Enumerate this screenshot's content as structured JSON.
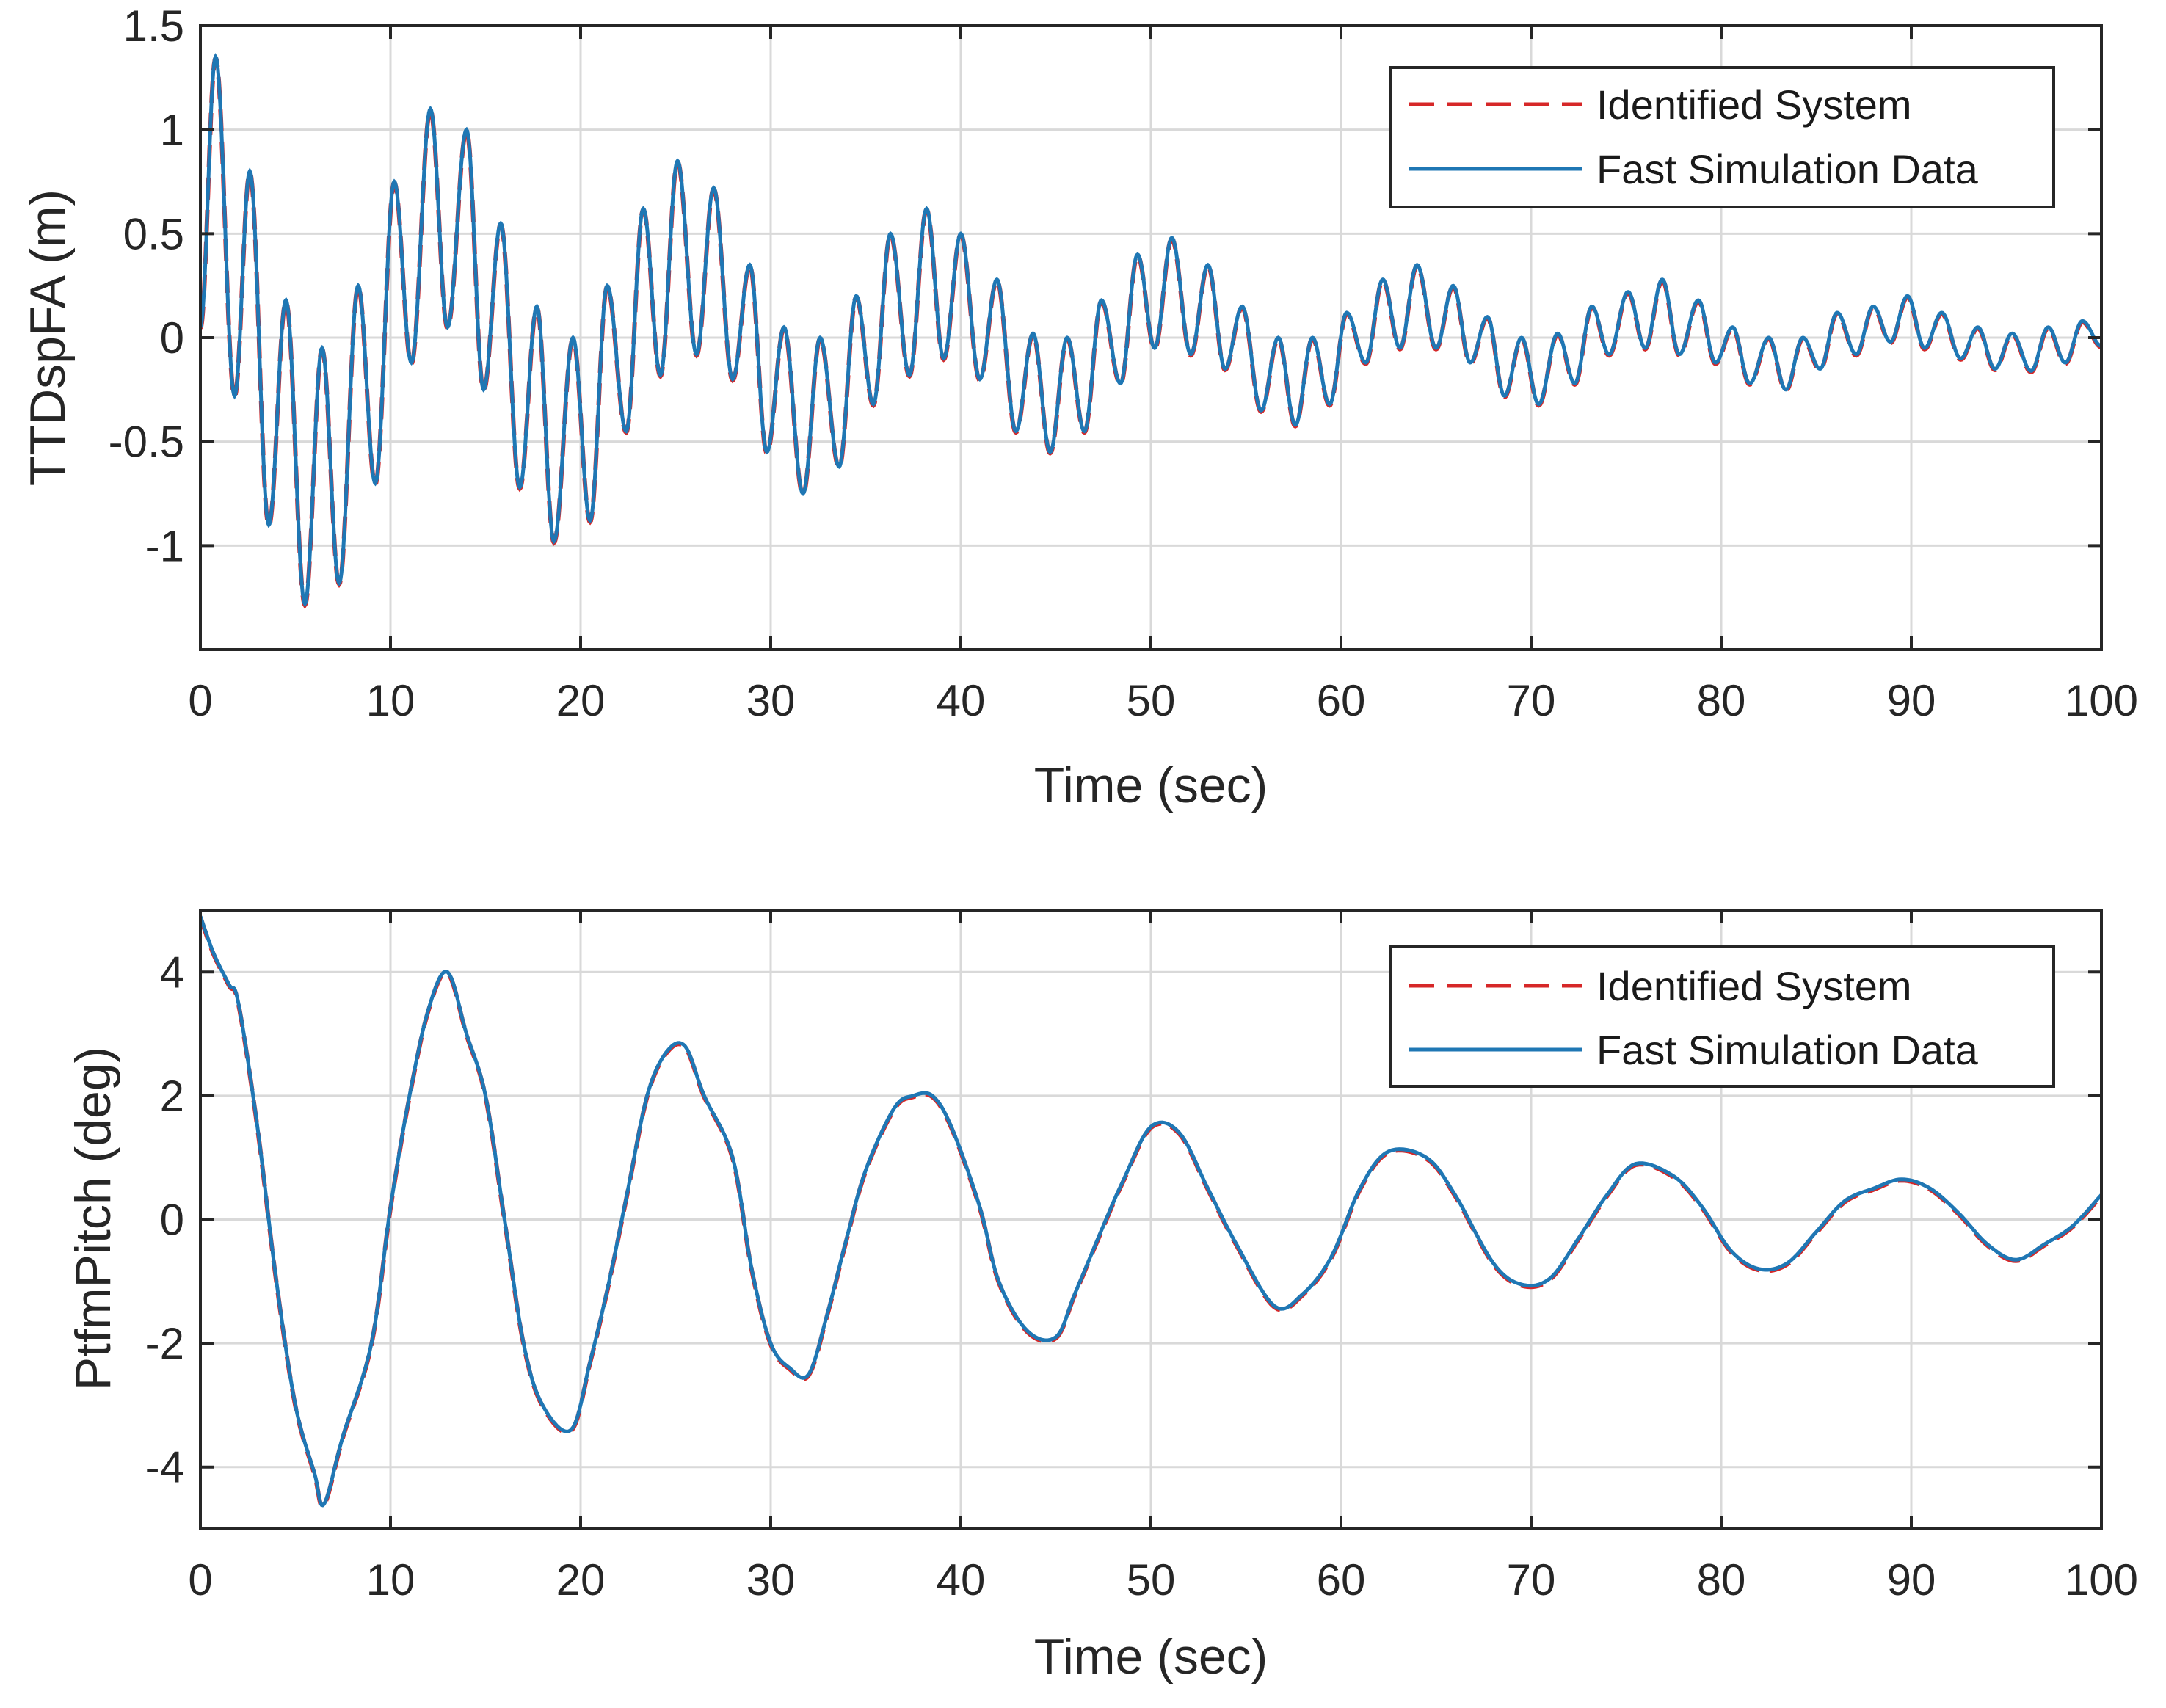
{
  "chart_data": [
    {
      "type": "line",
      "xlabel": "Time (sec)",
      "ylabel": "TTDspFA (m)",
      "xlim": [
        0,
        100
      ],
      "ylim": [
        -1.5,
        1.5
      ],
      "xticks": [
        "0",
        "10",
        "20",
        "30",
        "40",
        "50",
        "60",
        "70",
        "80",
        "90",
        "100"
      ],
      "yticks": [
        "1.5",
        "1",
        "0.5",
        "0",
        "-0.5",
        "-1"
      ],
      "grid": true,
      "legend_location": "top-right",
      "colors": {
        "identified": "#d62728",
        "fast": "#1f77b4"
      },
      "series": [
        {
          "name": "Identified System",
          "style": "dashed"
        },
        {
          "name": "Fast Simulation Data",
          "style": "solid"
        }
      ],
      "peaks": [
        [
          0,
          0.05
        ],
        [
          0.8,
          1.35
        ],
        [
          1.8,
          -0.28
        ],
        [
          2.6,
          0.8
        ],
        [
          3.6,
          -0.9
        ],
        [
          4.5,
          0.18
        ],
        [
          5.5,
          -1.28
        ],
        [
          6.4,
          -0.05
        ],
        [
          7.3,
          -1.18
        ],
        [
          8.3,
          0.25
        ],
        [
          9.2,
          -0.7
        ],
        [
          10.2,
          0.75
        ],
        [
          11.1,
          -0.12
        ],
        [
          12.1,
          1.1
        ],
        [
          13.0,
          0.05
        ],
        [
          14.0,
          1.0
        ],
        [
          14.9,
          -0.25
        ],
        [
          15.8,
          0.55
        ],
        [
          16.8,
          -0.72
        ],
        [
          17.7,
          0.15
        ],
        [
          18.6,
          -0.98
        ],
        [
          19.6,
          0.0
        ],
        [
          20.5,
          -0.88
        ],
        [
          21.4,
          0.25
        ],
        [
          22.4,
          -0.45
        ],
        [
          23.3,
          0.62
        ],
        [
          24.2,
          -0.18
        ],
        [
          25.1,
          0.85
        ],
        [
          26.1,
          -0.08
        ],
        [
          27.0,
          0.72
        ],
        [
          28.0,
          -0.2
        ],
        [
          28.9,
          0.35
        ],
        [
          29.8,
          -0.55
        ],
        [
          30.7,
          0.05
        ],
        [
          31.7,
          -0.75
        ],
        [
          32.6,
          0.0
        ],
        [
          33.6,
          -0.62
        ],
        [
          34.5,
          0.2
        ],
        [
          35.4,
          -0.32
        ],
        [
          36.3,
          0.5
        ],
        [
          37.3,
          -0.18
        ],
        [
          38.2,
          0.62
        ],
        [
          39.1,
          -0.1
        ],
        [
          40.0,
          0.5
        ],
        [
          41.0,
          -0.2
        ],
        [
          41.9,
          0.28
        ],
        [
          42.9,
          -0.45
        ],
        [
          43.8,
          0.02
        ],
        [
          44.7,
          -0.55
        ],
        [
          45.6,
          0.0
        ],
        [
          46.5,
          -0.45
        ],
        [
          47.4,
          0.18
        ],
        [
          48.4,
          -0.22
        ],
        [
          49.3,
          0.4
        ],
        [
          50.2,
          -0.05
        ],
        [
          51.1,
          0.48
        ],
        [
          52.1,
          -0.08
        ],
        [
          53.0,
          0.35
        ],
        [
          53.9,
          -0.15
        ],
        [
          54.8,
          0.15
        ],
        [
          55.8,
          -0.35
        ],
        [
          56.7,
          0.0
        ],
        [
          57.6,
          -0.42
        ],
        [
          58.5,
          0.0
        ],
        [
          59.4,
          -0.32
        ],
        [
          60.3,
          0.12
        ],
        [
          61.3,
          -0.12
        ],
        [
          62.2,
          0.28
        ],
        [
          63.1,
          -0.05
        ],
        [
          64.0,
          0.35
        ],
        [
          65.0,
          -0.05
        ],
        [
          65.9,
          0.25
        ],
        [
          66.8,
          -0.12
        ],
        [
          67.7,
          0.1
        ],
        [
          68.6,
          -0.28
        ],
        [
          69.5,
          0.0
        ],
        [
          70.4,
          -0.32
        ],
        [
          71.4,
          0.02
        ],
        [
          72.3,
          -0.22
        ],
        [
          73.2,
          0.15
        ],
        [
          74.1,
          -0.08
        ],
        [
          75.1,
          0.22
        ],
        [
          76.0,
          -0.05
        ],
        [
          76.9,
          0.28
        ],
        [
          77.8,
          -0.08
        ],
        [
          78.8,
          0.18
        ],
        [
          79.7,
          -0.12
        ],
        [
          80.6,
          0.05
        ],
        [
          81.5,
          -0.22
        ],
        [
          82.5,
          0.0
        ],
        [
          83.4,
          -0.25
        ],
        [
          84.3,
          0.0
        ],
        [
          85.2,
          -0.15
        ],
        [
          86.1,
          0.12
        ],
        [
          87.1,
          -0.08
        ],
        [
          88.0,
          0.15
        ],
        [
          88.9,
          -0.02
        ],
        [
          89.8,
          0.2
        ],
        [
          90.7,
          -0.05
        ],
        [
          91.6,
          0.12
        ],
        [
          92.6,
          -0.1
        ],
        [
          93.5,
          0.05
        ],
        [
          94.4,
          -0.15
        ],
        [
          95.3,
          0.02
        ],
        [
          96.3,
          -0.16
        ],
        [
          97.2,
          0.05
        ],
        [
          98.1,
          -0.12
        ],
        [
          99.0,
          0.08
        ],
        [
          100.0,
          -0.04
        ]
      ]
    },
    {
      "type": "line",
      "xlabel": "Time (sec)",
      "ylabel": "PtfmPitch (deg)",
      "xlim": [
        0,
        100
      ],
      "ylim": [
        -5,
        5
      ],
      "xticks": [
        "0",
        "10",
        "20",
        "30",
        "40",
        "50",
        "60",
        "70",
        "80",
        "90",
        "100"
      ],
      "yticks": [
        "4",
        "2",
        "0",
        "-2",
        "-4"
      ],
      "grid": true,
      "legend_location": "top-right",
      "colors": {
        "identified": "#d62728",
        "fast": "#1f77b4"
      },
      "series": [
        {
          "name": "Identified System",
          "style": "dashed"
        },
        {
          "name": "Fast Simulation Data",
          "style": "solid"
        }
      ],
      "points": [
        [
          0,
          4.9
        ],
        [
          0.7,
          4.3
        ],
        [
          1.5,
          3.8
        ],
        [
          2.0,
          3.5
        ],
        [
          3.0,
          1.5
        ],
        [
          4.0,
          -1.0
        ],
        [
          5.0,
          -3.0
        ],
        [
          6.0,
          -4.1
        ],
        [
          6.5,
          -4.6
        ],
        [
          7.5,
          -3.5
        ],
        [
          9.0,
          -2.0
        ],
        [
          10.0,
          0.2
        ],
        [
          11.0,
          2.0
        ],
        [
          12.0,
          3.4
        ],
        [
          13.0,
          4.0
        ],
        [
          14.0,
          3.0
        ],
        [
          15.0,
          2.0
        ],
        [
          16.0,
          0.0
        ],
        [
          17.0,
          -2.0
        ],
        [
          18.0,
          -3.0
        ],
        [
          19.5,
          -3.4
        ],
        [
          20.5,
          -2.3
        ],
        [
          21.5,
          -1.0
        ],
        [
          22.5,
          0.5
        ],
        [
          23.5,
          2.0
        ],
        [
          24.5,
          2.7
        ],
        [
          25.5,
          2.8
        ],
        [
          26.5,
          2.0
        ],
        [
          28.0,
          1.0
        ],
        [
          29.0,
          -0.8
        ],
        [
          30.0,
          -2.0
        ],
        [
          31.0,
          -2.4
        ],
        [
          32.0,
          -2.5
        ],
        [
          33.0,
          -1.5
        ],
        [
          34.0,
          -0.3
        ],
        [
          35.0,
          0.8
        ],
        [
          36.5,
          1.8
        ],
        [
          37.5,
          2.0
        ],
        [
          38.5,
          2.0
        ],
        [
          39.5,
          1.5
        ],
        [
          41.0,
          0.2
        ],
        [
          42.0,
          -1.0
        ],
        [
          43.5,
          -1.8
        ],
        [
          45.0,
          -1.9
        ],
        [
          46.0,
          -1.2
        ],
        [
          47.5,
          -0.1
        ],
        [
          48.5,
          0.6
        ],
        [
          50.0,
          1.5
        ],
        [
          51.5,
          1.4
        ],
        [
          53.0,
          0.5
        ],
        [
          54.5,
          -0.4
        ],
        [
          56.5,
          -1.4
        ],
        [
          58.0,
          -1.2
        ],
        [
          59.5,
          -0.6
        ],
        [
          61.0,
          0.5
        ],
        [
          62.5,
          1.1
        ],
        [
          64.5,
          1.0
        ],
        [
          66.0,
          0.4
        ],
        [
          68.0,
          -0.7
        ],
        [
          69.5,
          -1.05
        ],
        [
          71.0,
          -0.95
        ],
        [
          72.5,
          -0.3
        ],
        [
          74.0,
          0.4
        ],
        [
          75.5,
          0.9
        ],
        [
          77.5,
          0.7
        ],
        [
          79.0,
          0.2
        ],
        [
          80.5,
          -0.5
        ],
        [
          82.0,
          -0.8
        ],
        [
          83.5,
          -0.7
        ],
        [
          85.0,
          -0.2
        ],
        [
          86.5,
          0.3
        ],
        [
          88.0,
          0.5
        ],
        [
          89.5,
          0.65
        ],
        [
          91.0,
          0.5
        ],
        [
          92.5,
          0.1
        ],
        [
          94.0,
          -0.4
        ],
        [
          95.5,
          -0.65
        ],
        [
          97.0,
          -0.4
        ],
        [
          98.5,
          -0.1
        ],
        [
          100.0,
          0.4
        ]
      ]
    }
  ]
}
